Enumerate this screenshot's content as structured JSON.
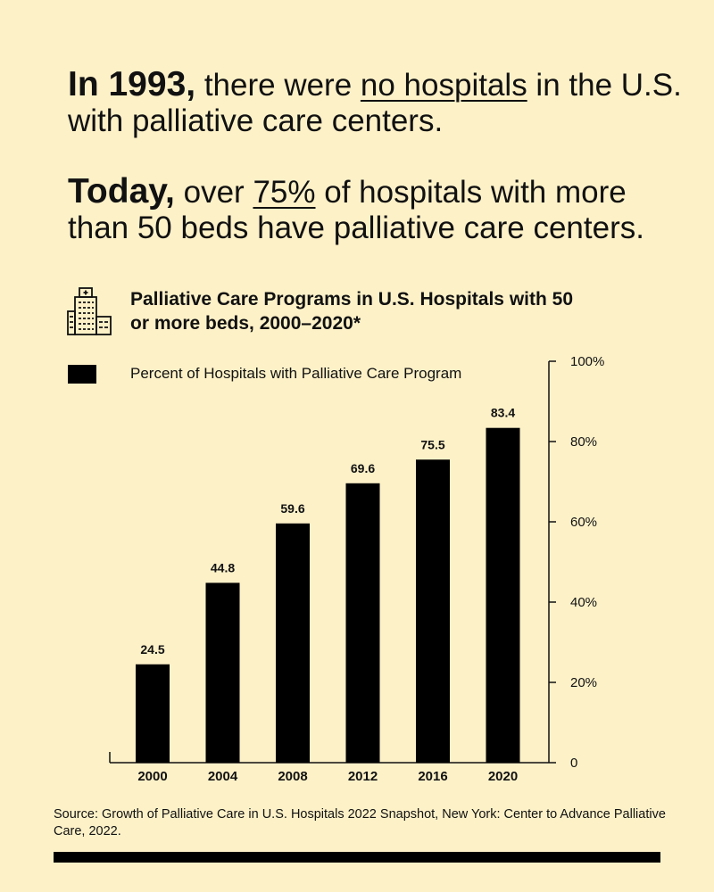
{
  "headline1": {
    "lead": "In 1993,",
    "text_before": " there were ",
    "emphasis": "no hospitals",
    "text_after": " in the U.S. with palliative care centers."
  },
  "headline2": {
    "lead": "Today,",
    "text_before": " over ",
    "emphasis": "75%",
    "text_after": " of hospitals with more than 50 beds have palliative care centers."
  },
  "icon": "hospital-building-icon",
  "colors": {
    "background": "#fdf1c8",
    "bar": "#000000",
    "text": "#111111"
  },
  "chart_data": {
    "type": "bar",
    "title": "Palliative Care Programs in U.S. Hospitals with 50 or more beds, 2000–2020*",
    "categories": [
      "2000",
      "2004",
      "2008",
      "2012",
      "2016",
      "2020"
    ],
    "series": [
      {
        "name": "Percent of Hospitals with Palliative Care Program",
        "values": [
          24.5,
          44.8,
          59.6,
          69.6,
          75.5,
          83.4
        ]
      }
    ],
    "data_labels": [
      "24.5",
      "44.8",
      "59.6",
      "69.6",
      "75.5",
      "83.4"
    ],
    "ylim": [
      0,
      100
    ],
    "yticks": [
      0,
      20,
      40,
      60,
      80,
      100
    ],
    "ytick_labels": [
      "0",
      "20%",
      "40%",
      "60%",
      "80%",
      "100%"
    ],
    "y_axis_position": "right",
    "legend_placement": "top-left",
    "grid": false
  },
  "source": "Source: Growth of Palliative Care in U.S. Hospitals 2022 Snapshot, New York: Center to Advance Palliative Care, 2022."
}
